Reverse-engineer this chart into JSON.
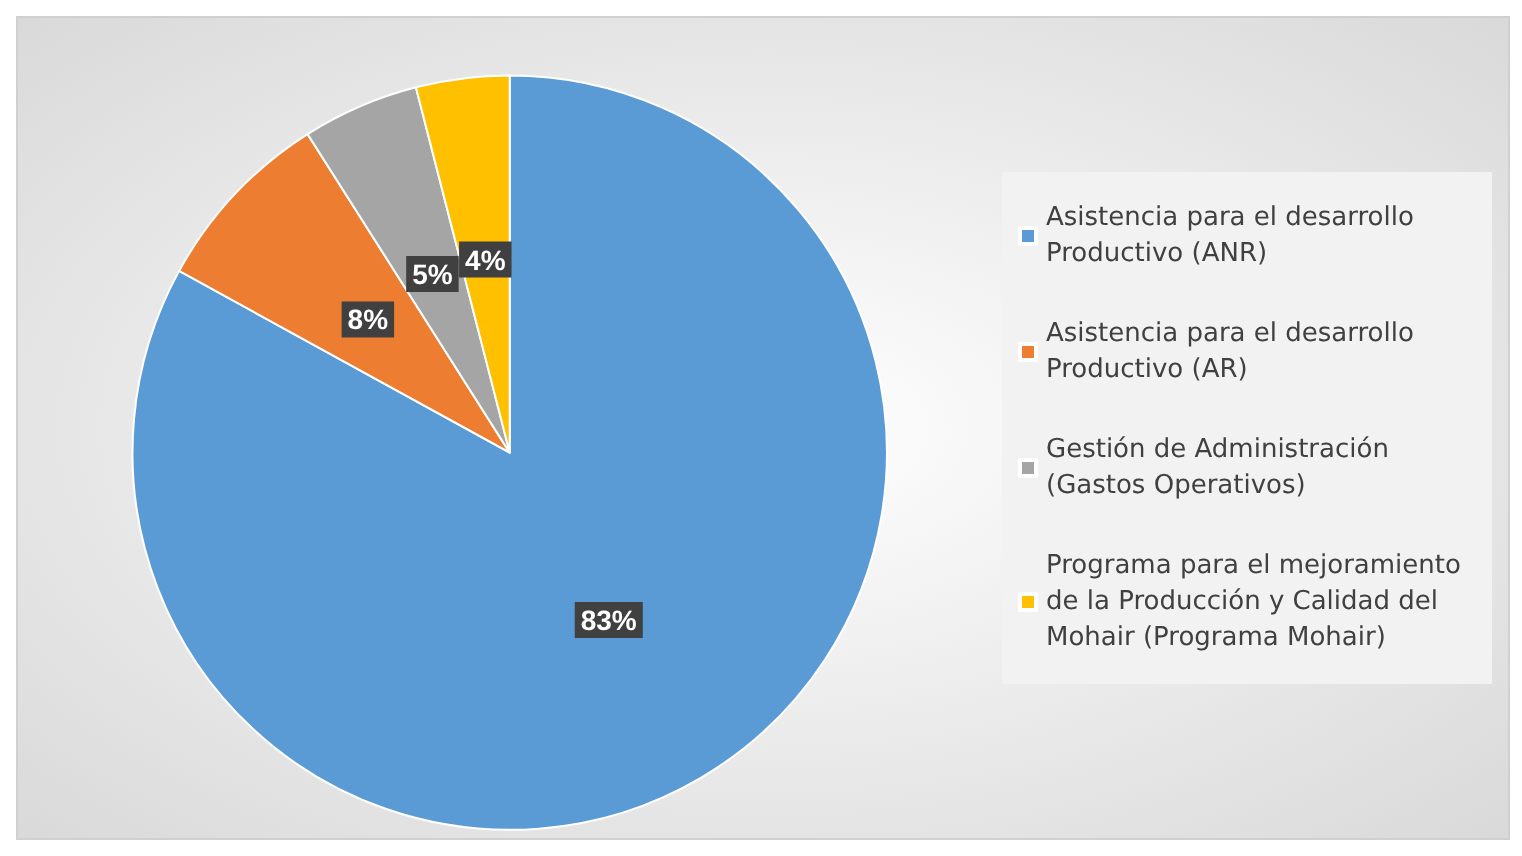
{
  "chart_data": {
    "type": "pie",
    "categories": [
      "Asistencia para el desarrollo Productivo (ANR)",
      "Asistencia para el desarrollo Productivo (AR)",
      "Gestión de Administración (Gastos Operativos)",
      "Programa para el mejoramiento de la Producción y Calidad del Mohair (Programa Mohair)"
    ],
    "values": [
      83,
      8,
      5,
      4
    ],
    "value_labels": [
      "83%",
      "8%",
      "5%",
      "4%"
    ],
    "colors": [
      "#5b9bd5",
      "#ed7d31",
      "#a5a5a5",
      "#ffc000"
    ],
    "legend": "right"
  }
}
